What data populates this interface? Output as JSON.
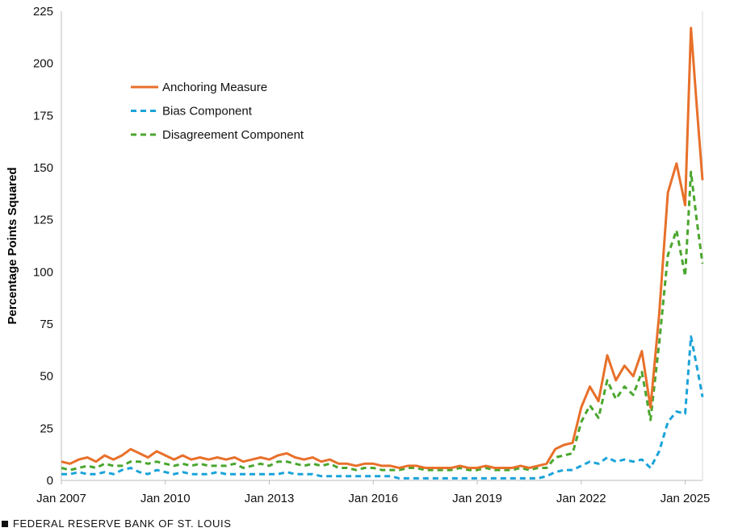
{
  "chart_data": {
    "type": "line",
    "title": "",
    "xlabel": "",
    "ylabel": "Percentage Points Squared",
    "ylim": [
      0,
      225
    ],
    "yticks": [
      0,
      25,
      50,
      75,
      100,
      125,
      150,
      175,
      200,
      225
    ],
    "xlim": [
      "2007-01",
      "2025-07"
    ],
    "xticks": [
      "Jan 2007",
      "Jan 2010",
      "Jan 2013",
      "Jan 2016",
      "Jan 2019",
      "Jan 2022",
      "Jan 2025"
    ],
    "grid": false,
    "legend_position": "upper-left",
    "series": [
      {
        "name": "Anchoring Measure",
        "color": "#E8702A",
        "style": "solid",
        "points": [
          [
            "2007-01",
            9
          ],
          [
            "2007-04",
            8
          ],
          [
            "2007-07",
            10
          ],
          [
            "2007-10",
            11
          ],
          [
            "2008-01",
            9
          ],
          [
            "2008-04",
            12
          ],
          [
            "2008-07",
            10
          ],
          [
            "2008-10",
            12
          ],
          [
            "2009-01",
            15
          ],
          [
            "2009-04",
            13
          ],
          [
            "2009-07",
            11
          ],
          [
            "2009-10",
            14
          ],
          [
            "2010-01",
            12
          ],
          [
            "2010-04",
            10
          ],
          [
            "2010-07",
            12
          ],
          [
            "2010-10",
            10
          ],
          [
            "2011-01",
            11
          ],
          [
            "2011-04",
            10
          ],
          [
            "2011-07",
            11
          ],
          [
            "2011-10",
            10
          ],
          [
            "2012-01",
            11
          ],
          [
            "2012-04",
            9
          ],
          [
            "2012-07",
            10
          ],
          [
            "2012-10",
            11
          ],
          [
            "2013-01",
            10
          ],
          [
            "2013-04",
            12
          ],
          [
            "2013-07",
            13
          ],
          [
            "2013-10",
            11
          ],
          [
            "2014-01",
            10
          ],
          [
            "2014-04",
            11
          ],
          [
            "2014-07",
            9
          ],
          [
            "2014-10",
            10
          ],
          [
            "2015-01",
            8
          ],
          [
            "2015-04",
            8
          ],
          [
            "2015-07",
            7
          ],
          [
            "2015-10",
            8
          ],
          [
            "2016-01",
            8
          ],
          [
            "2016-04",
            7
          ],
          [
            "2016-07",
            7
          ],
          [
            "2016-10",
            6
          ],
          [
            "2017-01",
            7
          ],
          [
            "2017-04",
            7
          ],
          [
            "2017-07",
            6
          ],
          [
            "2017-10",
            6
          ],
          [
            "2018-01",
            6
          ],
          [
            "2018-04",
            6
          ],
          [
            "2018-07",
            7
          ],
          [
            "2018-10",
            6
          ],
          [
            "2019-01",
            6
          ],
          [
            "2019-04",
            7
          ],
          [
            "2019-07",
            6
          ],
          [
            "2019-10",
            6
          ],
          [
            "2020-01",
            6
          ],
          [
            "2020-04",
            7
          ],
          [
            "2020-07",
            6
          ],
          [
            "2020-10",
            7
          ],
          [
            "2021-01",
            8
          ],
          [
            "2021-04",
            15
          ],
          [
            "2021-07",
            17
          ],
          [
            "2021-10",
            18
          ],
          [
            "2022-01",
            35
          ],
          [
            "2022-04",
            45
          ],
          [
            "2022-07",
            38
          ],
          [
            "2022-10",
            60
          ],
          [
            "2023-01",
            48
          ],
          [
            "2023-04",
            55
          ],
          [
            "2023-07",
            50
          ],
          [
            "2023-10",
            62
          ],
          [
            "2024-01",
            35
          ],
          [
            "2024-04",
            80
          ],
          [
            "2024-07",
            138
          ],
          [
            "2024-10",
            152
          ],
          [
            "2025-01",
            132
          ],
          [
            "2025-03",
            217
          ],
          [
            "2025-05",
            180
          ],
          [
            "2025-07",
            144
          ]
        ]
      },
      {
        "name": "Bias Component",
        "color": "#1AA3D9",
        "style": "dashed",
        "points": [
          [
            "2007-01",
            3
          ],
          [
            "2007-04",
            3
          ],
          [
            "2007-07",
            4
          ],
          [
            "2007-10",
            3
          ],
          [
            "2008-01",
            3
          ],
          [
            "2008-04",
            4
          ],
          [
            "2008-07",
            3
          ],
          [
            "2008-10",
            5
          ],
          [
            "2009-01",
            6
          ],
          [
            "2009-04",
            4
          ],
          [
            "2009-07",
            3
          ],
          [
            "2009-10",
            5
          ],
          [
            "2010-01",
            4
          ],
          [
            "2010-04",
            3
          ],
          [
            "2010-07",
            4
          ],
          [
            "2010-10",
            3
          ],
          [
            "2011-01",
            3
          ],
          [
            "2011-04",
            3
          ],
          [
            "2011-07",
            4
          ],
          [
            "2011-10",
            3
          ],
          [
            "2012-01",
            3
          ],
          [
            "2012-04",
            3
          ],
          [
            "2012-07",
            3
          ],
          [
            "2012-10",
            3
          ],
          [
            "2013-01",
            3
          ],
          [
            "2013-04",
            3
          ],
          [
            "2013-07",
            4
          ],
          [
            "2013-10",
            3
          ],
          [
            "2014-01",
            3
          ],
          [
            "2014-04",
            3
          ],
          [
            "2014-07",
            2
          ],
          [
            "2014-10",
            2
          ],
          [
            "2015-01",
            2
          ],
          [
            "2015-04",
            2
          ],
          [
            "2015-07",
            2
          ],
          [
            "2015-10",
            2
          ],
          [
            "2016-01",
            2
          ],
          [
            "2016-04",
            2
          ],
          [
            "2016-07",
            2
          ],
          [
            "2016-10",
            1
          ],
          [
            "2017-01",
            1
          ],
          [
            "2017-04",
            1
          ],
          [
            "2017-07",
            1
          ],
          [
            "2017-10",
            1
          ],
          [
            "2018-01",
            1
          ],
          [
            "2018-04",
            1
          ],
          [
            "2018-07",
            1
          ],
          [
            "2018-10",
            1
          ],
          [
            "2019-01",
            1
          ],
          [
            "2019-04",
            1
          ],
          [
            "2019-07",
            1
          ],
          [
            "2019-10",
            1
          ],
          [
            "2020-01",
            1
          ],
          [
            "2020-04",
            1
          ],
          [
            "2020-07",
            1
          ],
          [
            "2020-10",
            1
          ],
          [
            "2021-01",
            2
          ],
          [
            "2021-04",
            4
          ],
          [
            "2021-07",
            5
          ],
          [
            "2021-10",
            5
          ],
          [
            "2022-01",
            7
          ],
          [
            "2022-04",
            9
          ],
          [
            "2022-07",
            8
          ],
          [
            "2022-10",
            11
          ],
          [
            "2023-01",
            9
          ],
          [
            "2023-04",
            10
          ],
          [
            "2023-07",
            9
          ],
          [
            "2023-10",
            10
          ],
          [
            "2024-01",
            6
          ],
          [
            "2024-04",
            14
          ],
          [
            "2024-07",
            28
          ],
          [
            "2024-10",
            33
          ],
          [
            "2025-01",
            32
          ],
          [
            "2025-03",
            69
          ],
          [
            "2025-05",
            55
          ],
          [
            "2025-07",
            40
          ]
        ]
      },
      {
        "name": "Disagreement Component",
        "color": "#4AA62E",
        "style": "dashed",
        "points": [
          [
            "2007-01",
            6
          ],
          [
            "2007-04",
            5
          ],
          [
            "2007-07",
            6
          ],
          [
            "2007-10",
            7
          ],
          [
            "2008-01",
            6
          ],
          [
            "2008-04",
            8
          ],
          [
            "2008-07",
            7
          ],
          [
            "2008-10",
            7
          ],
          [
            "2009-01",
            9
          ],
          [
            "2009-04",
            9
          ],
          [
            "2009-07",
            8
          ],
          [
            "2009-10",
            9
          ],
          [
            "2010-01",
            8
          ],
          [
            "2010-04",
            7
          ],
          [
            "2010-07",
            8
          ],
          [
            "2010-10",
            7
          ],
          [
            "2011-01",
            8
          ],
          [
            "2011-04",
            7
          ],
          [
            "2011-07",
            7
          ],
          [
            "2011-10",
            7
          ],
          [
            "2012-01",
            8
          ],
          [
            "2012-04",
            6
          ],
          [
            "2012-07",
            7
          ],
          [
            "2012-10",
            8
          ],
          [
            "2013-01",
            7
          ],
          [
            "2013-04",
            9
          ],
          [
            "2013-07",
            9
          ],
          [
            "2013-10",
            8
          ],
          [
            "2014-01",
            7
          ],
          [
            "2014-04",
            8
          ],
          [
            "2014-07",
            7
          ],
          [
            "2014-10",
            8
          ],
          [
            "2015-01",
            6
          ],
          [
            "2015-04",
            6
          ],
          [
            "2015-07",
            5
          ],
          [
            "2015-10",
            6
          ],
          [
            "2016-01",
            6
          ],
          [
            "2016-04",
            5
          ],
          [
            "2016-07",
            5
          ],
          [
            "2016-10",
            5
          ],
          [
            "2017-01",
            6
          ],
          [
            "2017-04",
            6
          ],
          [
            "2017-07",
            5
          ],
          [
            "2017-10",
            5
          ],
          [
            "2018-01",
            5
          ],
          [
            "2018-04",
            5
          ],
          [
            "2018-07",
            6
          ],
          [
            "2018-10",
            5
          ],
          [
            "2019-01",
            5
          ],
          [
            "2019-04",
            6
          ],
          [
            "2019-07",
            5
          ],
          [
            "2019-10",
            5
          ],
          [
            "2020-01",
            5
          ],
          [
            "2020-04",
            6
          ],
          [
            "2020-07",
            5
          ],
          [
            "2020-10",
            6
          ],
          [
            "2021-01",
            6
          ],
          [
            "2021-04",
            11
          ],
          [
            "2021-07",
            12
          ],
          [
            "2021-10",
            13
          ],
          [
            "2022-01",
            28
          ],
          [
            "2022-04",
            36
          ],
          [
            "2022-07",
            30
          ],
          [
            "2022-10",
            48
          ],
          [
            "2023-01",
            39
          ],
          [
            "2023-04",
            45
          ],
          [
            "2023-07",
            41
          ],
          [
            "2023-10",
            52
          ],
          [
            "2024-01",
            29
          ],
          [
            "2024-04",
            66
          ],
          [
            "2024-07",
            108
          ],
          [
            "2024-10",
            120
          ],
          [
            "2025-01",
            98
          ],
          [
            "2025-03",
            148
          ],
          [
            "2025-05",
            125
          ],
          [
            "2025-07",
            104
          ]
        ]
      }
    ]
  },
  "footer": {
    "text": "FEDERAL RESERVE BANK OF ST. LOUIS"
  }
}
